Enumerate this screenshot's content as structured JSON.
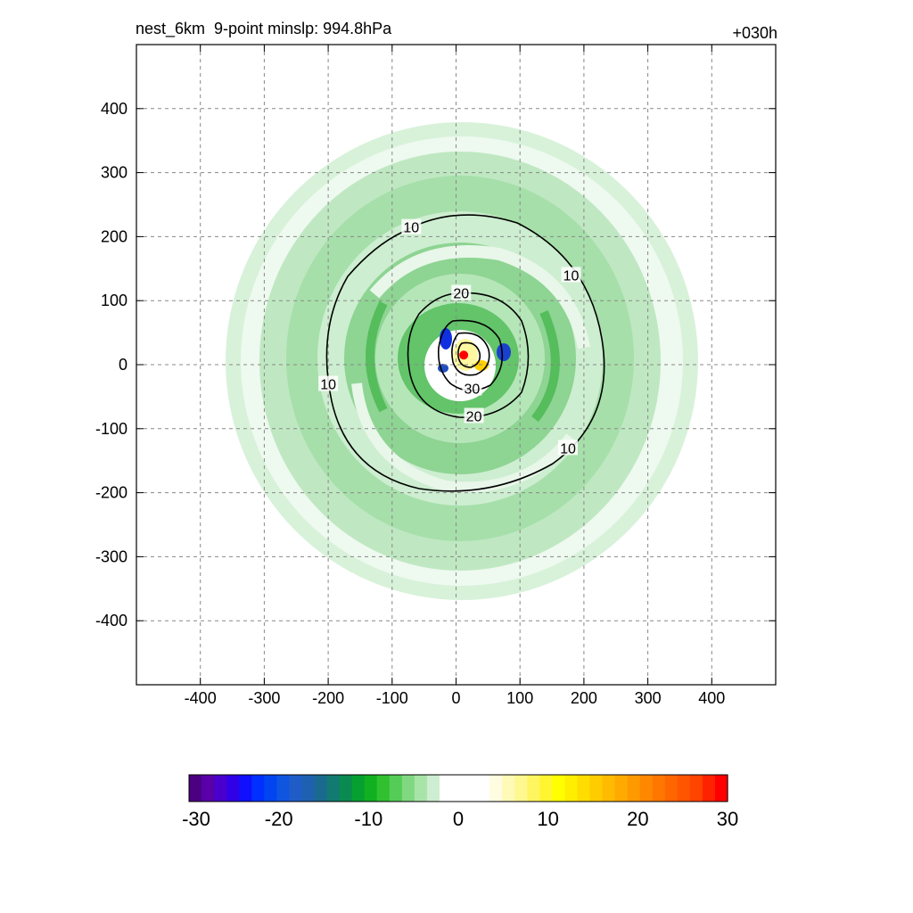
{
  "chart_data": {
    "type": "contour",
    "title_left": "nest_6km  9-point minslp: 994.8hPa",
    "title_right": "+030h",
    "xlim": [
      -500,
      500
    ],
    "ylim": [
      -500,
      500
    ],
    "xticks": [
      -400,
      -300,
      -200,
      -100,
      0,
      100,
      200,
      300,
      400
    ],
    "yticks": [
      -400,
      -300,
      -200,
      -100,
      0,
      100,
      200,
      300,
      400
    ],
    "xtick_labels": [
      "-400",
      "-300",
      "-200",
      "-100",
      "0",
      "100",
      "200",
      "300",
      "400"
    ],
    "ytick_labels": [
      "400",
      "300",
      "200",
      "100",
      "0",
      "-100",
      "-200",
      "-300",
      "-400"
    ],
    "grid": true,
    "contour_levels": [
      10,
      20,
      30
    ],
    "contour_labels": [
      {
        "text": "10",
        "x": -70,
        "y": 215
      },
      {
        "text": "10",
        "x": 180,
        "y": 140
      },
      {
        "text": "10",
        "x": -200,
        "y": -30
      },
      {
        "text": "10",
        "x": 175,
        "y": -130
      },
      {
        "text": "20",
        "x": 8,
        "y": 112
      },
      {
        "text": "20",
        "x": 28,
        "y": -80
      },
      {
        "text": "30",
        "x": 25,
        "y": -37
      }
    ],
    "center": {
      "x": 12,
      "y": 15
    },
    "colorbar": {
      "range": [
        -30,
        30
      ],
      "tick_values": [
        -30,
        -20,
        -10,
        0,
        10,
        20,
        30
      ],
      "tick_labels": [
        "-30",
        "-20",
        "-10",
        "0",
        "10",
        "20",
        "30"
      ],
      "colors": [
        "#4b0082",
        "#5a00a8",
        "#4a00cc",
        "#3000e6",
        "#1010ff",
        "#0030ff",
        "#0045f0",
        "#1055e0",
        "#1f5cc8",
        "#2060b0",
        "#1a6a90",
        "#127a70",
        "#0a8a50",
        "#05a030",
        "#10b020",
        "#30c030",
        "#55cc55",
        "#80d880",
        "#a8e4a8",
        "#cdeed0",
        "#ffffff",
        "#ffffff",
        "#ffffff",
        "#ffffff",
        "#fffce0",
        "#fffab8",
        "#fff890",
        "#fff560",
        "#fff530",
        "#ffff00",
        "#ffee00",
        "#ffdd00",
        "#ffcc00",
        "#ffbb00",
        "#ffaa00",
        "#ff9900",
        "#ff8800",
        "#ff7700",
        "#ff6600",
        "#ff5500",
        "#ff4400",
        "#ff2200",
        "#ff0000"
      ]
    }
  }
}
